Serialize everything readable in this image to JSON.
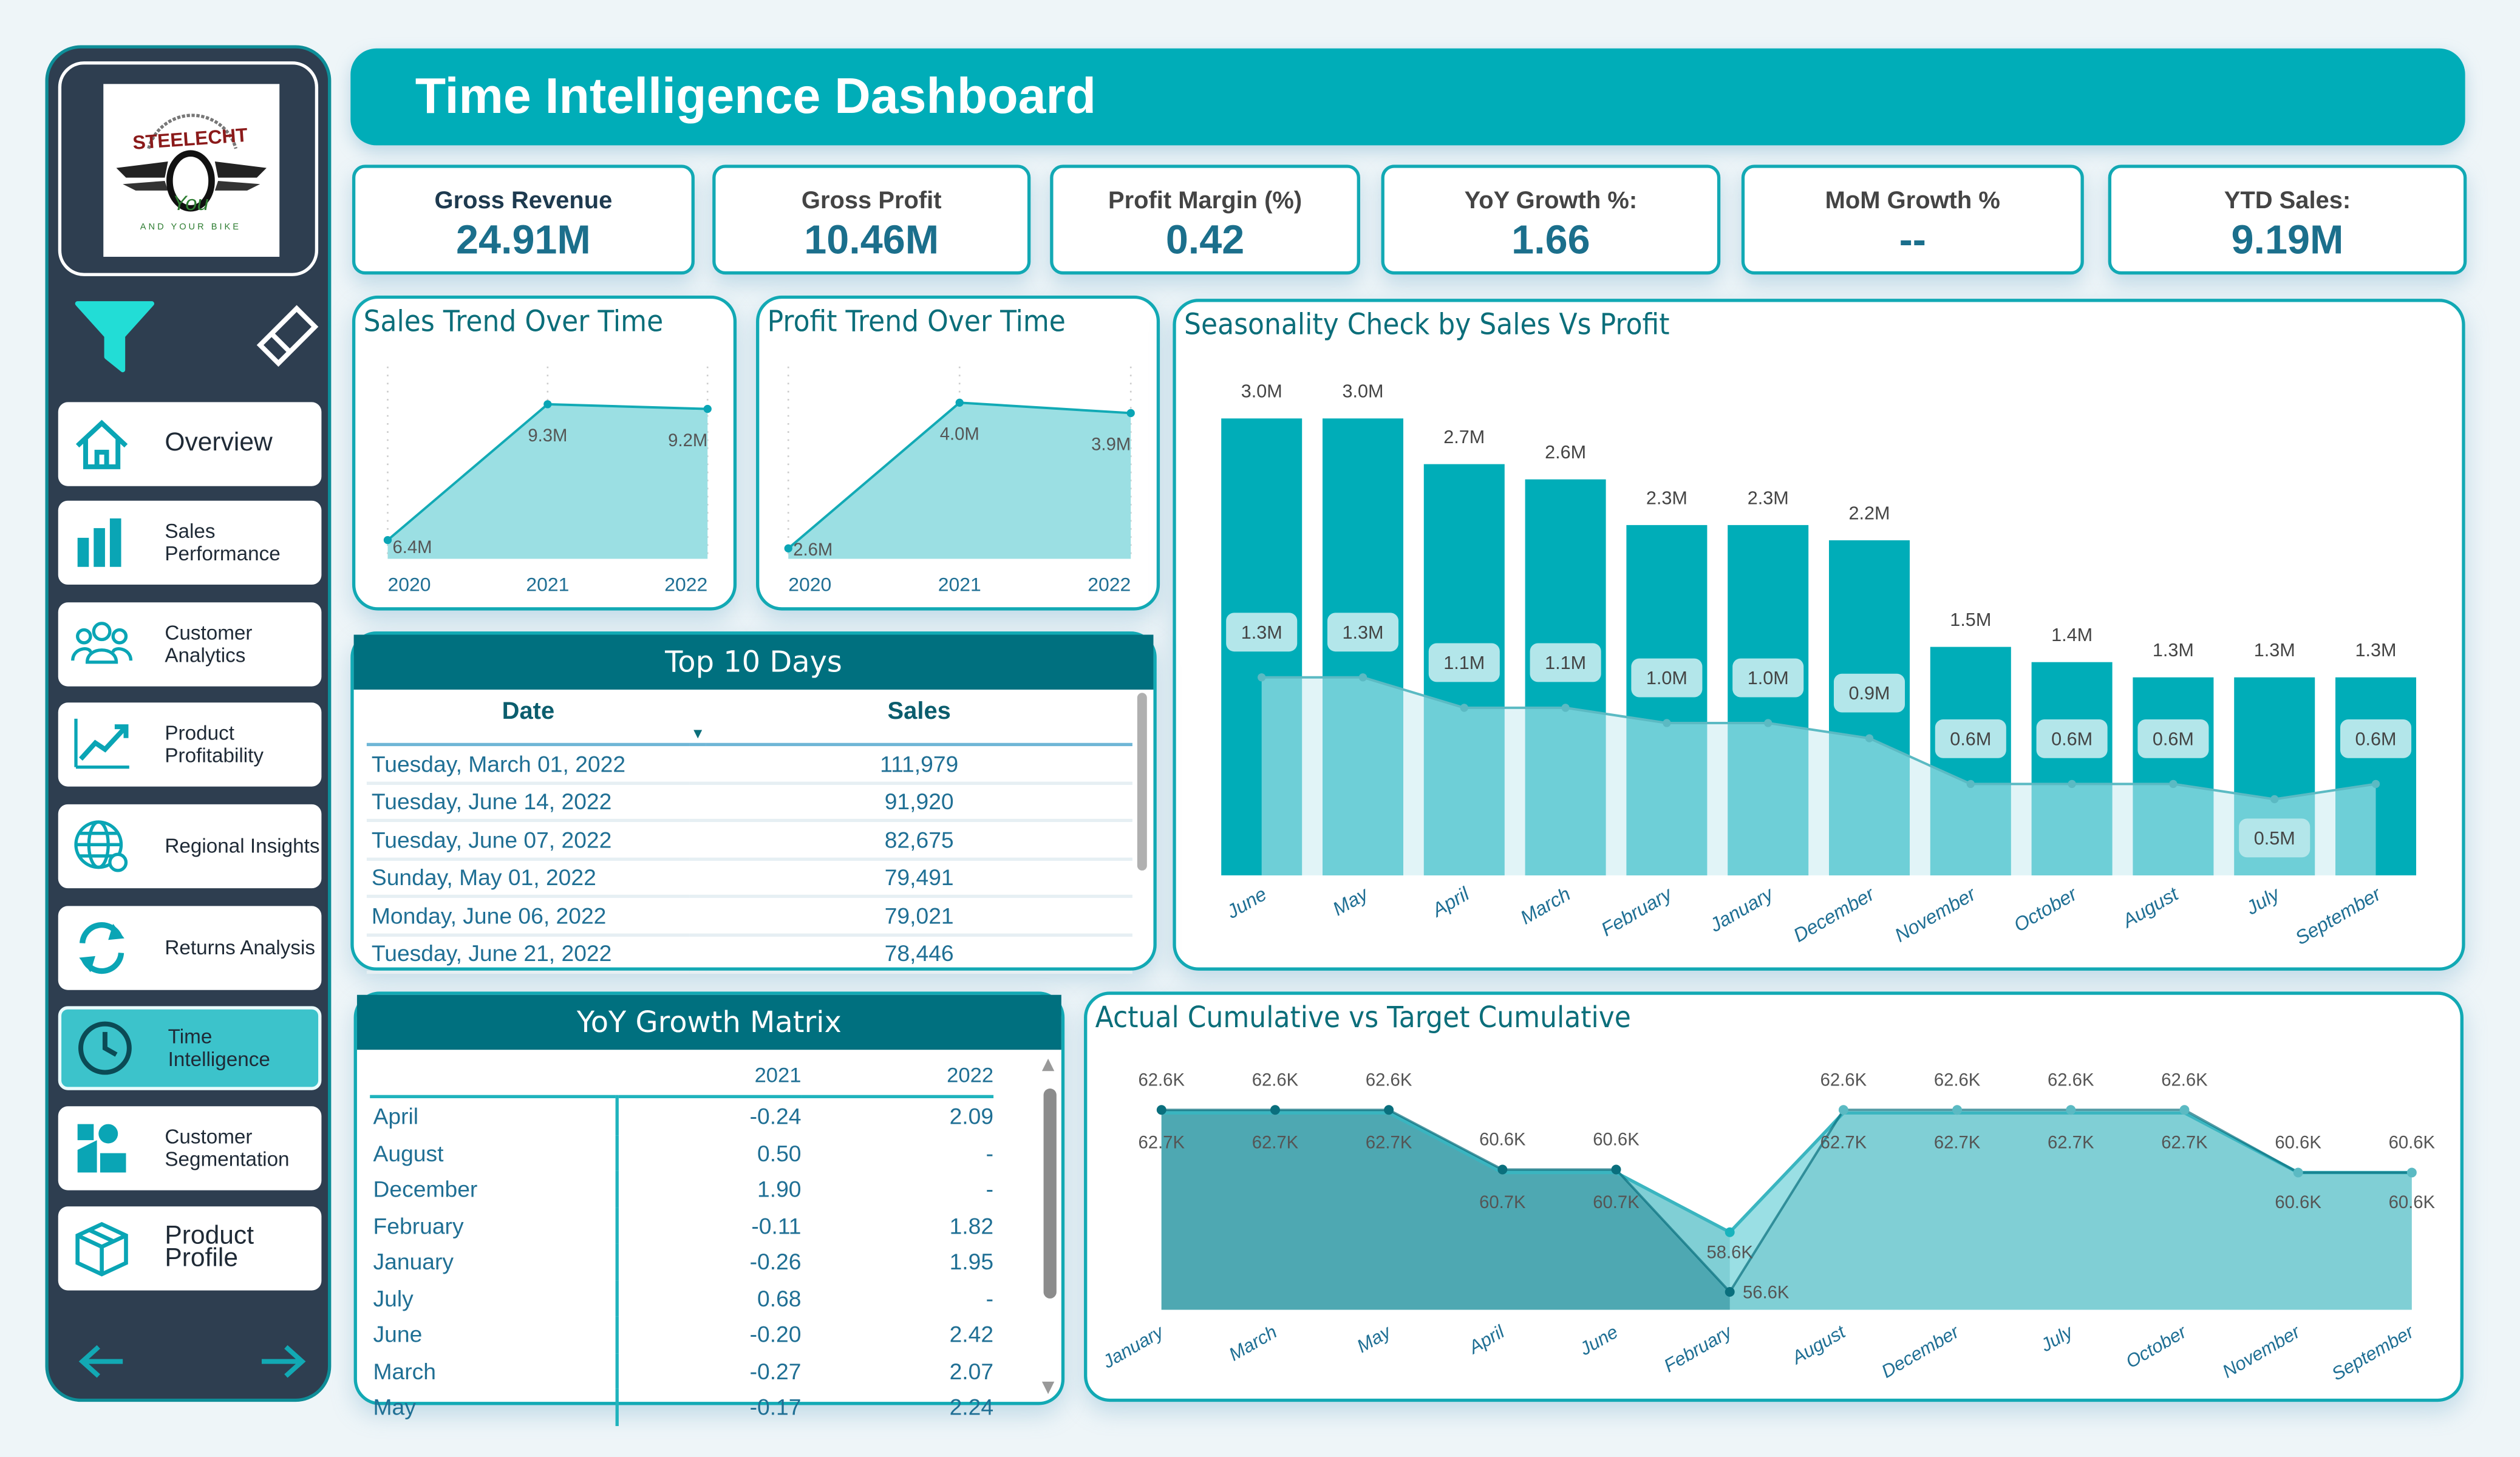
{
  "header": {
    "title": "Time Intelligence Dashboard"
  },
  "sidebar": {
    "logo_text": "STEELECHT You AND YOUR BIKE",
    "filter_icon": "filter-icon",
    "clear_icon": "eraser-icon",
    "items": [
      {
        "label": "Overview",
        "icon": "home-icon",
        "active": false
      },
      {
        "label": "Sales Performance",
        "icon": "bar-chart-icon",
        "active": false
      },
      {
        "label": "Customer Analytics",
        "icon": "users-icon",
        "active": false
      },
      {
        "label": "Product Profitability",
        "icon": "trend-line-icon",
        "active": false
      },
      {
        "label": "Regional Insights",
        "icon": "globe-icon",
        "active": false
      },
      {
        "label": "Returns Analysis",
        "icon": "refresh-icon",
        "active": false
      },
      {
        "label": "Time Intelligence",
        "icon": "clock-icon",
        "active": true
      },
      {
        "label": "Customer Segmentation",
        "icon": "segmentation-icon",
        "active": false
      },
      {
        "label": "Product Profile",
        "icon": "box-icon",
        "active": false
      }
    ],
    "back_icon": "arrow-left-icon",
    "next_icon": "arrow-right-icon"
  },
  "kpis": [
    {
      "label": "Gross Revenue",
      "value": "24.91M"
    },
    {
      "label": "Gross Profit",
      "value": "10.46M"
    },
    {
      "label": "Profit Margin (%)",
      "value": "0.42"
    },
    {
      "label": "YoY Growth %:",
      "value": "1.66"
    },
    {
      "label": "MoM Growth %",
      "value": "--"
    },
    {
      "label": "YTD Sales:",
      "value": "9.19M"
    }
  ],
  "colors": {
    "accent": "#00adb8",
    "dark_teal": "#00707f",
    "sidebar": "#2e3e50",
    "area": "#9bdfe3",
    "filter": "#22ddd6"
  },
  "chart_data": [
    {
      "type": "area",
      "title": "Sales Trend Over Time",
      "categories": [
        "2020",
        "2021",
        "2022"
      ],
      "values": [
        6.4,
        9.3,
        9.2
      ],
      "labels": [
        "6.4M",
        "9.3M",
        "9.2M"
      ],
      "ylim": [
        6.0,
        10.0
      ]
    },
    {
      "type": "area",
      "title": "Profit Trend Over Time",
      "categories": [
        "2020",
        "2021",
        "2022"
      ],
      "values": [
        2.6,
        4.0,
        3.9
      ],
      "labels": [
        "2.6M",
        "4.0M",
        "3.9M"
      ],
      "ylim": [
        2.5,
        4.3
      ]
    },
    {
      "type": "bar",
      "title": "Seasonality Check by Sales Vs Profit",
      "categories": [
        "June",
        "May",
        "April",
        "March",
        "February",
        "January",
        "December",
        "November",
        "October",
        "August",
        "July",
        "September"
      ],
      "series": [
        {
          "kind": "bar",
          "values": [
            3.0,
            3.0,
            2.7,
            2.6,
            2.3,
            2.3,
            2.2,
            1.5,
            1.4,
            1.3,
            1.3,
            1.3
          ],
          "labels": [
            "3.0M",
            "3.0M",
            "2.7M",
            "2.6M",
            "2.3M",
            "2.3M",
            "2.2M",
            "1.5M",
            "1.4M",
            "1.3M",
            "1.3M",
            "1.3M"
          ]
        },
        {
          "kind": "area",
          "values": [
            1.3,
            1.3,
            1.1,
            1.1,
            1.0,
            1.0,
            0.9,
            0.6,
            0.6,
            0.6,
            0.5,
            0.6
          ],
          "labels": [
            "1.3M",
            "1.3M",
            "1.1M",
            "1.1M",
            "1.0M",
            "1.0M",
            "0.9M",
            "0.6M",
            "0.6M",
            "0.6M",
            "0.5M",
            "0.6M"
          ]
        }
      ],
      "ylim": [
        0,
        3.0
      ]
    },
    {
      "type": "area",
      "title": "Actual Cumulative vs Target Cumulative",
      "categories": [
        "January",
        "March",
        "May",
        "April",
        "June",
        "February",
        "August",
        "December",
        "July",
        "October",
        "November",
        "September"
      ],
      "series": [
        {
          "values": [
            62.6,
            62.6,
            62.6,
            60.6,
            60.6,
            58.6,
            62.6,
            62.6,
            62.6,
            62.6,
            60.6,
            60.6
          ],
          "labels": [
            "62.6K",
            "62.6K",
            "62.6K",
            "60.6K",
            "60.6K",
            "58.6K",
            "62.6K",
            "62.6K",
            "62.6K",
            "62.6K",
            "60.6K",
            "60.6K"
          ]
        },
        {
          "values": [
            62.7,
            62.7,
            62.7,
            60.7,
            60.7,
            56.6,
            62.7,
            62.7,
            62.7,
            62.7,
            60.6,
            60.6
          ],
          "labels": [
            "62.7K",
            "62.7K",
            "62.7K",
            "60.7K",
            "60.7K",
            "56.6K",
            "62.7K",
            "62.7K",
            "62.7K",
            "62.7K",
            "60.6K",
            "60.6K"
          ]
        }
      ],
      "ylim": [
        56.0,
        63.2
      ]
    }
  ],
  "top10": {
    "title": "Top 10 Days",
    "columns": [
      "Date",
      "Sales"
    ],
    "rows": [
      [
        "Tuesday, March 01, 2022",
        "111,979"
      ],
      [
        "Tuesday, June 14, 2022",
        "91,920"
      ],
      [
        "Tuesday, June 07, 2022",
        "82,675"
      ],
      [
        "Sunday, May 01, 2022",
        "79,491"
      ],
      [
        "Monday, June 06, 2022",
        "79,021"
      ],
      [
        "Tuesday, June 21, 2022",
        "78,446"
      ]
    ]
  },
  "yoy": {
    "title": "YoY Growth Matrix",
    "columns": [
      "",
      "2021",
      "2022"
    ],
    "rows": [
      [
        "April",
        "-0.24",
        "2.09"
      ],
      [
        "August",
        "0.50",
        "-"
      ],
      [
        "December",
        "1.90",
        "-"
      ],
      [
        "February",
        "-0.11",
        "1.82"
      ],
      [
        "January",
        "-0.26",
        "1.95"
      ],
      [
        "July",
        "0.68",
        "-"
      ],
      [
        "June",
        "-0.20",
        "2.42"
      ],
      [
        "March",
        "-0.27",
        "2.07"
      ],
      [
        "May",
        "-0.17",
        "2.24"
      ]
    ]
  }
}
